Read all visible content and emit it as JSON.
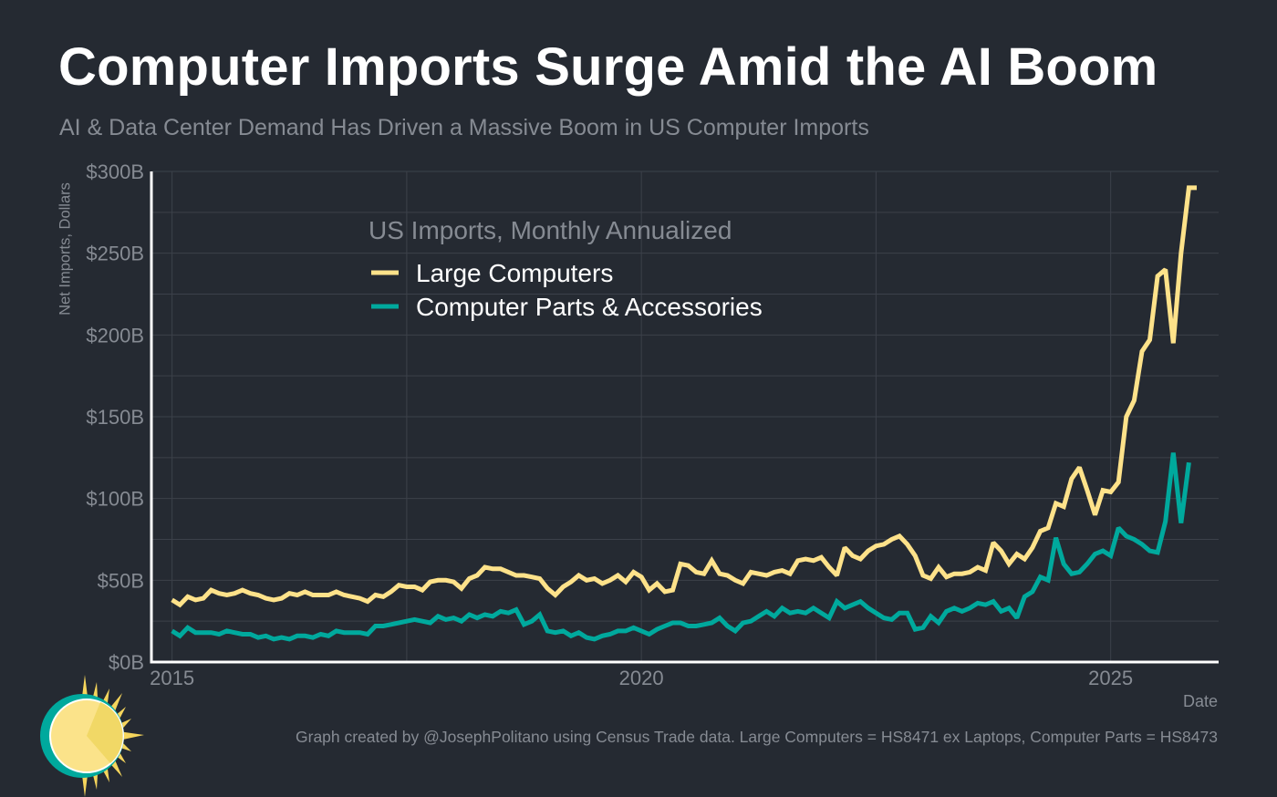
{
  "header": {
    "title": "Computer Imports Surge Amid the AI Boom",
    "subtitle": "AI & Data Center Demand Has Driven a Massive Boom in US Computer Imports"
  },
  "footer": {
    "caption": "Graph created by @JosephPolitano using Census Trade data. Large Computers = HS8471 ex Laptops, Computer Parts = HS8473",
    "logo_icon": "sun-logo-icon"
  },
  "colors": {
    "background": "#252a32",
    "large_computers": "#fee28a",
    "computer_parts": "#00a99d",
    "grid": "#3c414a",
    "axis": "#ffffff",
    "muted_text": "#868b93"
  },
  "chart_data": {
    "type": "line",
    "title": "Computer Imports Surge Amid the AI Boom",
    "subtitle": "AI & Data Center Demand Has Driven a Massive Boom in US Computer Imports",
    "xlabel": "Date",
    "ylabel": "Net Imports, Dollars",
    "ylim": [
      0,
      300
    ],
    "yticks": [
      0,
      50,
      100,
      150,
      200,
      250,
      300
    ],
    "ytick_labels": [
      "$0B",
      "$50B",
      "$100B",
      "$150B",
      "$200B",
      "$250B",
      "$300B"
    ],
    "xlim": [
      2014.78,
      2026.15
    ],
    "xticks": [
      2015,
      2020,
      2025
    ],
    "xtick_labels": [
      "2015",
      "2020",
      "2025"
    ],
    "grid": true,
    "legend": {
      "title": "US Imports, Monthly Annualized",
      "placement": "top-center",
      "entries": [
        "Large Computers",
        "Computer Parts & Accessories"
      ]
    },
    "x_start": "2015-01",
    "x_frequency": "monthly",
    "series": [
      {
        "name": "Large Computers",
        "color": "#fee28a",
        "values": [
          38,
          35,
          40,
          38,
          39,
          44,
          42,
          41,
          42,
          44,
          42,
          41,
          39,
          38,
          39,
          42,
          41,
          43,
          41,
          41,
          41,
          43,
          41,
          40,
          39,
          37,
          41,
          40,
          43,
          47,
          46,
          46,
          44,
          49,
          50,
          50,
          49,
          45,
          51,
          53,
          58,
          57,
          57,
          55,
          53,
          53,
          52,
          51,
          45,
          41,
          46,
          49,
          53,
          50,
          51,
          48,
          50,
          53,
          49,
          55,
          52,
          44,
          48,
          43,
          44,
          60,
          59,
          55,
          54,
          62,
          54,
          53,
          50,
          48,
          55,
          54,
          53,
          55,
          56,
          54,
          62,
          63,
          62,
          64,
          58,
          53,
          70,
          65,
          63,
          68,
          71,
          72,
          75,
          77,
          72,
          65,
          53,
          51,
          58,
          52,
          54,
          54,
          55,
          58,
          56,
          73,
          68,
          60,
          66,
          63,
          70,
          80,
          82,
          97,
          95,
          112,
          119,
          105,
          90,
          105,
          104,
          110,
          150,
          160,
          190,
          197,
          236,
          240,
          195,
          250,
          290,
          290
        ]
      },
      {
        "name": "Computer Parts & Accessories",
        "color": "#00a99d",
        "values": [
          19,
          16,
          21,
          18,
          18,
          18,
          17,
          19,
          18,
          17,
          17,
          15,
          16,
          14,
          15,
          14,
          16,
          16,
          15,
          17,
          16,
          19,
          18,
          18,
          18,
          17,
          22,
          22,
          23,
          24,
          25,
          26,
          25,
          24,
          28,
          26,
          27,
          25,
          29,
          27,
          29,
          28,
          31,
          30,
          32,
          23,
          25,
          29,
          19,
          18,
          19,
          16,
          18,
          15,
          14,
          16,
          17,
          19,
          19,
          21,
          19,
          17,
          20,
          22,
          24,
          24,
          22,
          22,
          23,
          24,
          27,
          22,
          19,
          24,
          25,
          28,
          31,
          28,
          33,
          30,
          31,
          30,
          33,
          30,
          27,
          37,
          33,
          35,
          37,
          33,
          30,
          27,
          26,
          30,
          30,
          20,
          21,
          28,
          24,
          31,
          33,
          31,
          33,
          36,
          35,
          37,
          31,
          33,
          27,
          40,
          43,
          52,
          50,
          76,
          60,
          54,
          55,
          60,
          66,
          68,
          65,
          82,
          77,
          75,
          72,
          68,
          67,
          86,
          128,
          85,
          122
        ]
      }
    ]
  }
}
